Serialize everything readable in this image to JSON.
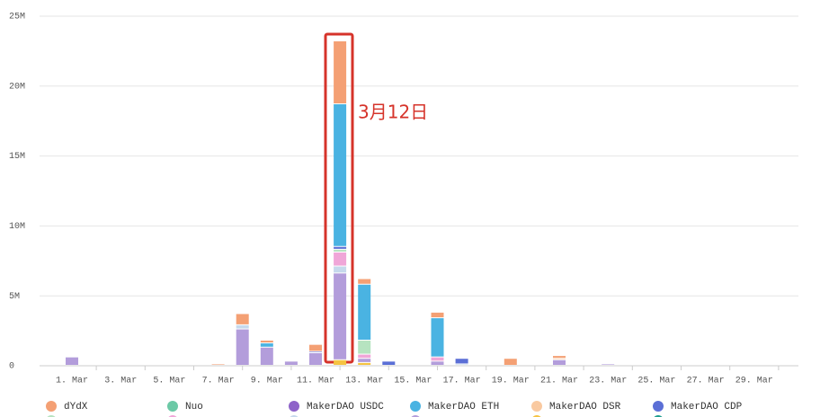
{
  "chart_data": {
    "type": "stacked-bar",
    "annotation": "3月12日",
    "categories": [
      "1. Mar",
      null,
      "3. Mar",
      null,
      "5. Mar",
      null,
      "7. Mar",
      null,
      "9. Mar",
      null,
      "11. Mar",
      null,
      "13. Mar",
      null,
      "15. Mar",
      null,
      "17. Mar",
      null,
      "19. Mar",
      null,
      "21. Mar",
      null,
      "23. Mar",
      null,
      "25. Mar",
      null,
      "27. Mar",
      null,
      "29. Mar",
      null
    ],
    "ylim": [
      0,
      25000000
    ],
    "yticks": [
      0,
      {
        "value": 5000000,
        "label": "5M"
      },
      {
        "value": 10000000,
        "label": "10M"
      },
      {
        "value": 15000000,
        "label": "15M"
      },
      {
        "value": 20000000,
        "label": "20M"
      },
      {
        "value": 25000000,
        "label": "25M"
      }
    ],
    "grid": true,
    "series": [
      {
        "name": "dYdX",
        "color": "#f4a074",
        "values": [
          0,
          0,
          0,
          0,
          0,
          0,
          100000,
          800000,
          200000,
          0,
          500000,
          4500000,
          400000,
          0,
          0,
          400000,
          0,
          0,
          500000,
          0,
          200000,
          0,
          0,
          0,
          0,
          0,
          0,
          0,
          0,
          0
        ]
      },
      {
        "name": "Nuo",
        "color": "#6cc9a6",
        "values": [
          0,
          0,
          0,
          0,
          0,
          0,
          0,
          0,
          0,
          0,
          0,
          0,
          0,
          0,
          0,
          0,
          0,
          0,
          0,
          0,
          0,
          0,
          0,
          0,
          0,
          0,
          0,
          0,
          0,
          0
        ]
      },
      {
        "name": "MakerDAO USDC",
        "color": "#8e63c9",
        "values": [
          0,
          0,
          0,
          0,
          0,
          0,
          0,
          0,
          0,
          0,
          0,
          0,
          0,
          0,
          0,
          0,
          0,
          0,
          0,
          0,
          0,
          0,
          0,
          0,
          0,
          0,
          0,
          0,
          0,
          0
        ]
      },
      {
        "name": "MakerDAO ETH",
        "color": "#4ab3e2",
        "values": [
          0,
          0,
          0,
          0,
          0,
          0,
          0,
          0,
          300000,
          0,
          0,
          10200000,
          4000000,
          0,
          0,
          2800000,
          0,
          0,
          0,
          0,
          0,
          0,
          0,
          0,
          0,
          0,
          0,
          0,
          0,
          0
        ]
      },
      {
        "name": "MakerDAO DSR",
        "color": "#f9c9a0",
        "values": [
          0,
          0,
          0,
          0,
          0,
          0,
          0,
          0,
          0,
          0,
          0,
          0,
          0,
          0,
          0,
          0,
          0,
          0,
          0,
          0,
          100000,
          0,
          0,
          0,
          0,
          0,
          0,
          0,
          0,
          0
        ]
      },
      {
        "name": "MakerDAO CDP",
        "color": "#5b6fd6",
        "values": [
          0,
          0,
          0,
          0,
          0,
          0,
          0,
          0,
          0,
          0,
          100000,
          200000,
          0,
          300000,
          0,
          0,
          400000,
          0,
          0,
          0,
          0,
          0,
          0,
          0,
          0,
          0,
          0,
          0,
          0,
          0
        ]
      },
      {
        "color": "#b6e3c0",
        "values": [
          0,
          0,
          0,
          0,
          0,
          0,
          0,
          0,
          0,
          0,
          0,
          200000,
          1000000,
          0,
          0,
          0,
          0,
          0,
          0,
          0,
          0,
          0,
          0,
          0,
          0,
          0,
          0,
          0,
          0,
          0
        ]
      },
      {
        "color": "#f0a6d8",
        "values": [
          0,
          0,
          0,
          0,
          0,
          0,
          0,
          0,
          0,
          0,
          0,
          1000000,
          300000,
          0,
          0,
          300000,
          0,
          0,
          0,
          0,
          0,
          0,
          0,
          0,
          0,
          0,
          0,
          0,
          0,
          0
        ]
      },
      {
        "color": "#c6d9ec",
        "values": [
          0,
          0,
          0,
          0,
          0,
          0,
          0,
          300000,
          0,
          0,
          0,
          500000,
          0,
          0,
          0,
          0,
          100000,
          0,
          0,
          0,
          0,
          0,
          0,
          0,
          0,
          0,
          0,
          0,
          0,
          0
        ]
      },
      {
        "color": "#b39ddb",
        "values": [
          600000,
          0,
          0,
          0,
          0,
          0,
          0,
          2600000,
          1300000,
          300000,
          900000,
          6200000,
          300000,
          0,
          0,
          300000,
          0,
          0,
          0,
          0,
          400000,
          0,
          100000,
          0,
          0,
          0,
          0,
          50000,
          0,
          0
        ]
      },
      {
        "color": "#f5c342",
        "values": [
          0,
          0,
          0,
          0,
          0,
          0,
          0,
          0,
          0,
          0,
          0,
          400000,
          200000,
          0,
          0,
          0,
          0,
          0,
          0,
          0,
          0,
          0,
          0,
          0,
          0,
          0,
          0,
          0,
          0,
          0
        ]
      },
      {
        "color": "#1f9e8f",
        "values": [
          0,
          0,
          0,
          0,
          0,
          0,
          0,
          0,
          0,
          0,
          0,
          0,
          0,
          0,
          0,
          0,
          0,
          0,
          0,
          0,
          0,
          0,
          0,
          0,
          0,
          0,
          0,
          0,
          0,
          0
        ]
      }
    ]
  }
}
